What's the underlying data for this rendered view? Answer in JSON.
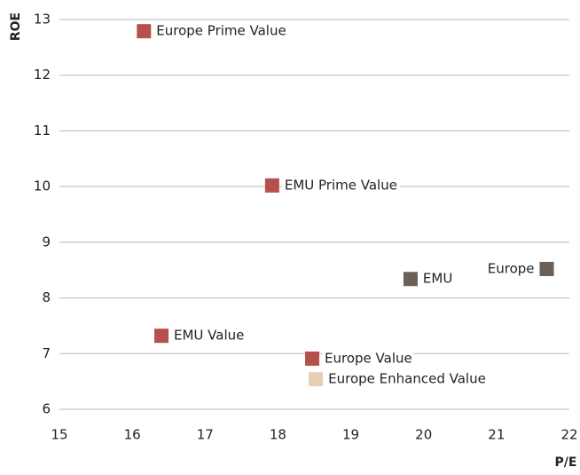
{
  "chart_data": {
    "type": "scatter",
    "x_label": "P/E",
    "y_label": "ROE",
    "xlim": [
      15,
      22
    ],
    "xticks": [
      15,
      16,
      17,
      18,
      19,
      20,
      21,
      22
    ],
    "ylim": [
      6,
      13
    ],
    "yticks": [
      6,
      7,
      8,
      9,
      10,
      11,
      12,
      13
    ],
    "grid": true,
    "series": [
      {
        "name": "Europe Prime Value",
        "color": "#b5504b",
        "x": [
          16.16
        ],
        "y": [
          12.79
        ]
      },
      {
        "name": "EMU Prime Value",
        "color": "#b5504b",
        "x": [
          17.92
        ],
        "y": [
          10.02
        ]
      },
      {
        "name": "EMU",
        "color": "#6b6058",
        "x": [
          19.82
        ],
        "y": [
          8.34
        ]
      },
      {
        "name": "Europe",
        "color": "#6b6058",
        "x": [
          21.69
        ],
        "y": [
          8.52
        ]
      },
      {
        "name": "EMU Value",
        "color": "#b5504b",
        "x": [
          16.4
        ],
        "y": [
          7.32
        ]
      },
      {
        "name": "Europe Value",
        "color": "#b5504b",
        "x": [
          18.47
        ],
        "y": [
          6.91
        ]
      },
      {
        "name": "Europe Enhanced Value",
        "color": "#e5cfb0",
        "x": [
          18.52
        ],
        "y": [
          6.54
        ]
      }
    ]
  }
}
